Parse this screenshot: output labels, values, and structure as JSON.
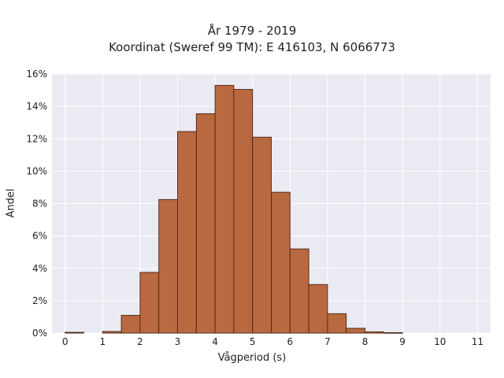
{
  "chart_data": {
    "type": "bar",
    "title": [
      "År 1979 - 2019",
      "Koordinat (Sweref 99 TM): E 416103, N 6066773"
    ],
    "xlabel": "Vågperiod (s)",
    "ylabel": "Andel",
    "bin_width": 0.5,
    "bin_starts": [
      0,
      0.5,
      1,
      1.5,
      2,
      2.5,
      3,
      3.5,
      4,
      4.5,
      5,
      5.5,
      6,
      6.5,
      7,
      7.5,
      8,
      8.5,
      9,
      9.5,
      10,
      10.5,
      11
    ],
    "values": [
      0.05,
      0.0,
      0.1,
      1.1,
      3.75,
      8.25,
      12.45,
      13.55,
      15.3,
      15.05,
      12.1,
      8.7,
      5.2,
      3.0,
      1.2,
      0.3,
      0.08,
      0.03,
      0.0,
      0.0,
      0.0,
      0.0,
      0.0
    ],
    "xlim": [
      -0.35,
      11.35
    ],
    "ylim": [
      0,
      16
    ],
    "xticks": [
      0,
      1,
      2,
      3,
      4,
      5,
      6,
      7,
      8,
      9,
      10,
      11
    ],
    "xtick_labels": [
      "0",
      "1",
      "2",
      "3",
      "4",
      "5",
      "6",
      "7",
      "8",
      "9",
      "10",
      "11"
    ],
    "yticks": [
      0,
      2,
      4,
      6,
      8,
      10,
      12,
      14,
      16
    ],
    "ytick_labels": [
      "0%",
      "2%",
      "4%",
      "6%",
      "8%",
      "10%",
      "12%",
      "14%",
      "16%"
    ],
    "grid": true,
    "colors": {
      "bar_fill": "#b8693f",
      "bar_edge": "#4a2716",
      "plot_background": "#eaeaf2",
      "grid": "#ffffff"
    }
  }
}
